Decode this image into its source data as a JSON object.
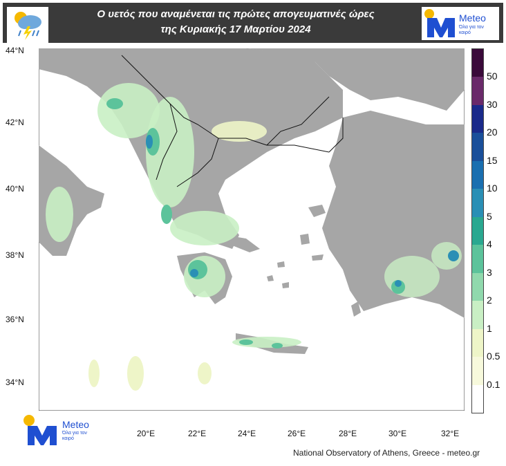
{
  "header": {
    "title_line1": "Ο υετός που αναμένεται τις πρώτες απογευματινές ώρες",
    "title_line2": "της Κυριακής 17 Μαρτίου 2024",
    "weather_icon": "rain-cloud-lightning-icon"
  },
  "brand": {
    "name": "Meteo",
    "tagline": "Όλα για τον καιρό",
    "color": "#1f4fd1",
    "sun_color": "#f5b800"
  },
  "map": {
    "sea_color": "#ffffff",
    "land_color": "#a6a6a6",
    "lat_labels": [
      "44°N",
      "42°N",
      "40°N",
      "38°N",
      "36°N",
      "34°N"
    ],
    "lon_labels": [
      "20°E",
      "22°E",
      "24°E",
      "26°E",
      "28°E",
      "30°E",
      "32°E"
    ]
  },
  "legend": {
    "levels": [
      "50",
      "30",
      "20",
      "15",
      "10",
      "5",
      "4",
      "3",
      "2",
      "1",
      "0.5",
      "0.1"
    ],
    "colors": [
      "#3a0a3a",
      "#6a2a6a",
      "#1a2a8a",
      "#1a4f9a",
      "#1a6fb0",
      "#2a8fb5",
      "#2aa890",
      "#5cc39b",
      "#90d9ad",
      "#c9efc4",
      "#eef5c8",
      "#f7f9dc",
      "#ffffff"
    ]
  },
  "footer": {
    "credit": "National Observatory of Athens, Greece - meteo.gr"
  }
}
